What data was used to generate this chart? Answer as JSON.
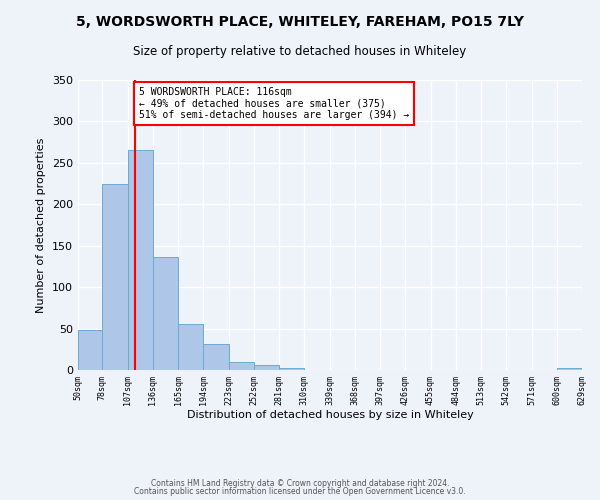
{
  "title": "5, WORDSWORTH PLACE, WHITELEY, FAREHAM, PO15 7LY",
  "subtitle": "Size of property relative to detached houses in Whiteley",
  "xlabel": "Distribution of detached houses by size in Whiteley",
  "ylabel": "Number of detached properties",
  "bin_edges": [
    50,
    78,
    107,
    136,
    165,
    194,
    223,
    252,
    281,
    310,
    339,
    368,
    397,
    426,
    455,
    484,
    513,
    542,
    571,
    600,
    629
  ],
  "bar_heights": [
    48,
    224,
    265,
    136,
    55,
    31,
    10,
    6,
    2,
    0,
    0,
    0,
    0,
    0,
    0,
    0,
    0,
    0,
    0,
    2
  ],
  "bar_color": "#aec6e8",
  "bar_edge_color": "#6aaad4",
  "reference_line_x": 116,
  "reference_line_color": "red",
  "annotation_text": "5 WORDSWORTH PLACE: 116sqm\n← 49% of detached houses are smaller (375)\n51% of semi-detached houses are larger (394) →",
  "annotation_box_edgecolor": "red",
  "ylim": [
    0,
    350
  ],
  "yticks": [
    0,
    50,
    100,
    150,
    200,
    250,
    300,
    350
  ],
  "xtick_labels": [
    "50sqm",
    "78sqm",
    "107sqm",
    "136sqm",
    "165sqm",
    "194sqm",
    "223sqm",
    "252sqm",
    "281sqm",
    "310sqm",
    "339sqm",
    "368sqm",
    "397sqm",
    "426sqm",
    "455sqm",
    "484sqm",
    "513sqm",
    "542sqm",
    "571sqm",
    "600sqm",
    "629sqm"
  ],
  "footer_line1": "Contains HM Land Registry data © Crown copyright and database right 2024.",
  "footer_line2": "Contains public sector information licensed under the Open Government Licence v3.0.",
  "background_color": "#eef2f9",
  "grid_color": "#ffffff"
}
